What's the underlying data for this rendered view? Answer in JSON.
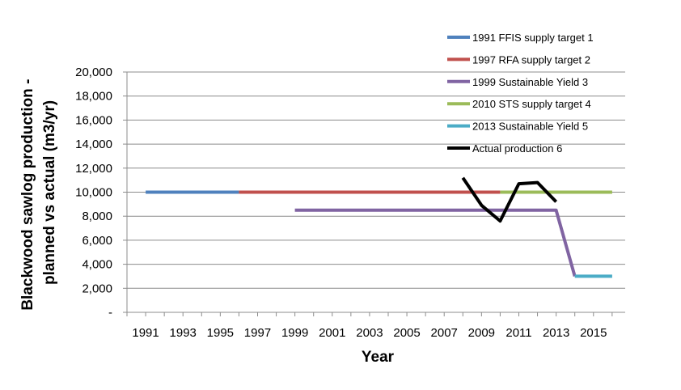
{
  "chart_data": {
    "type": "line",
    "title": "",
    "xlabel": "Year",
    "ylabel": "Blackwood sawlog production - planned vs actual (m3/yr)",
    "ylabel_lines": [
      "Blackwood sawlog production -",
      "planned vs actual (m3/yr)"
    ],
    "xlim": [
      1990,
      2016.7
    ],
    "ylim": [
      0,
      20000
    ],
    "x_ticks": [
      1991,
      1993,
      1995,
      1997,
      1999,
      2001,
      2003,
      2005,
      2007,
      2009,
      2011,
      2013,
      2015
    ],
    "y_ticks": [
      {
        "value": 0,
        "label": "-"
      },
      {
        "value": 2000,
        "label": "2,000"
      },
      {
        "value": 4000,
        "label": "4,000"
      },
      {
        "value": 6000,
        "label": "6,000"
      },
      {
        "value": 8000,
        "label": "8,000"
      },
      {
        "value": 10000,
        "label": "10,000"
      },
      {
        "value": 12000,
        "label": "12,000"
      },
      {
        "value": 14000,
        "label": "14,000"
      },
      {
        "value": 16000,
        "label": "16,000"
      },
      {
        "value": 18000,
        "label": "18,000"
      },
      {
        "value": 20000,
        "label": "20,000"
      }
    ],
    "grid": true,
    "legend_position": "top-right",
    "series": [
      {
        "name": "1991 FFIS supply target 1",
        "color": "#4f81bd",
        "x": [
          1991,
          1996
        ],
        "y": [
          10000,
          10000
        ]
      },
      {
        "name": "1997 RFA supply target 2",
        "color": "#c0504d",
        "x": [
          1996,
          2010
        ],
        "y": [
          10000,
          10000
        ]
      },
      {
        "name": "1999 Sustainable Yield 3",
        "color": "#8064a2",
        "x": [
          1999,
          2013,
          2014
        ],
        "y": [
          8500,
          8500,
          3000
        ]
      },
      {
        "name": "2010 STS supply target 4",
        "color": "#9bbb59",
        "x": [
          2010,
          2016
        ],
        "y": [
          10000,
          10000
        ]
      },
      {
        "name": "2013 Sustainable Yield 5",
        "color": "#4bacc6",
        "x": [
          2014,
          2016
        ],
        "y": [
          3000,
          3000
        ]
      },
      {
        "name": "Actual production 6",
        "color": "#000000",
        "x": [
          2008,
          2009,
          2010,
          2011,
          2012,
          2013
        ],
        "y": [
          11200,
          8900,
          7600,
          10700,
          10800,
          9200
        ]
      }
    ]
  }
}
